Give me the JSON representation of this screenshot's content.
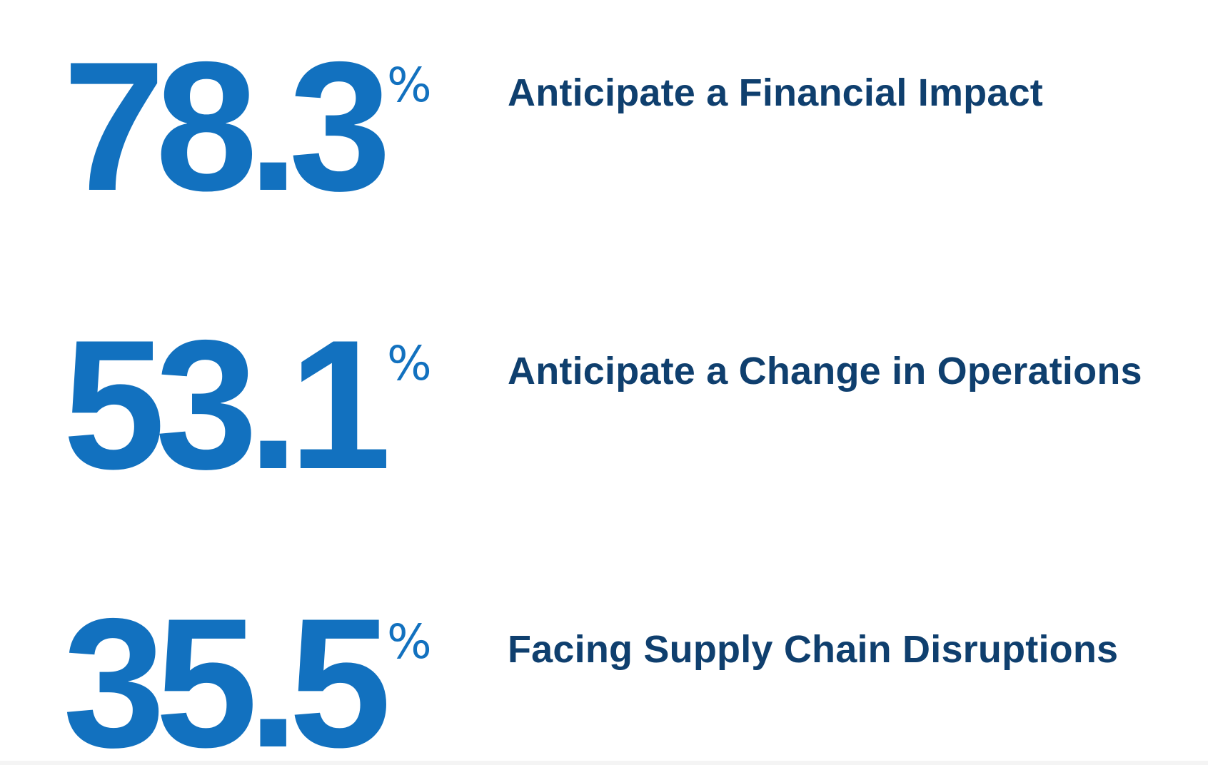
{
  "stats": [
    {
      "value": "78.3",
      "unit": "%",
      "label": "Anticipate a Financial Impact"
    },
    {
      "value": "53.1",
      "unit": "%",
      "label": "Anticipate a Change in Operations"
    },
    {
      "value": "35.5",
      "unit": "%",
      "label": "Facing Supply Chain Disruptions"
    }
  ],
  "colors": {
    "number": "#1271bf",
    "label": "#0f3f6e",
    "background": "#ffffff"
  }
}
